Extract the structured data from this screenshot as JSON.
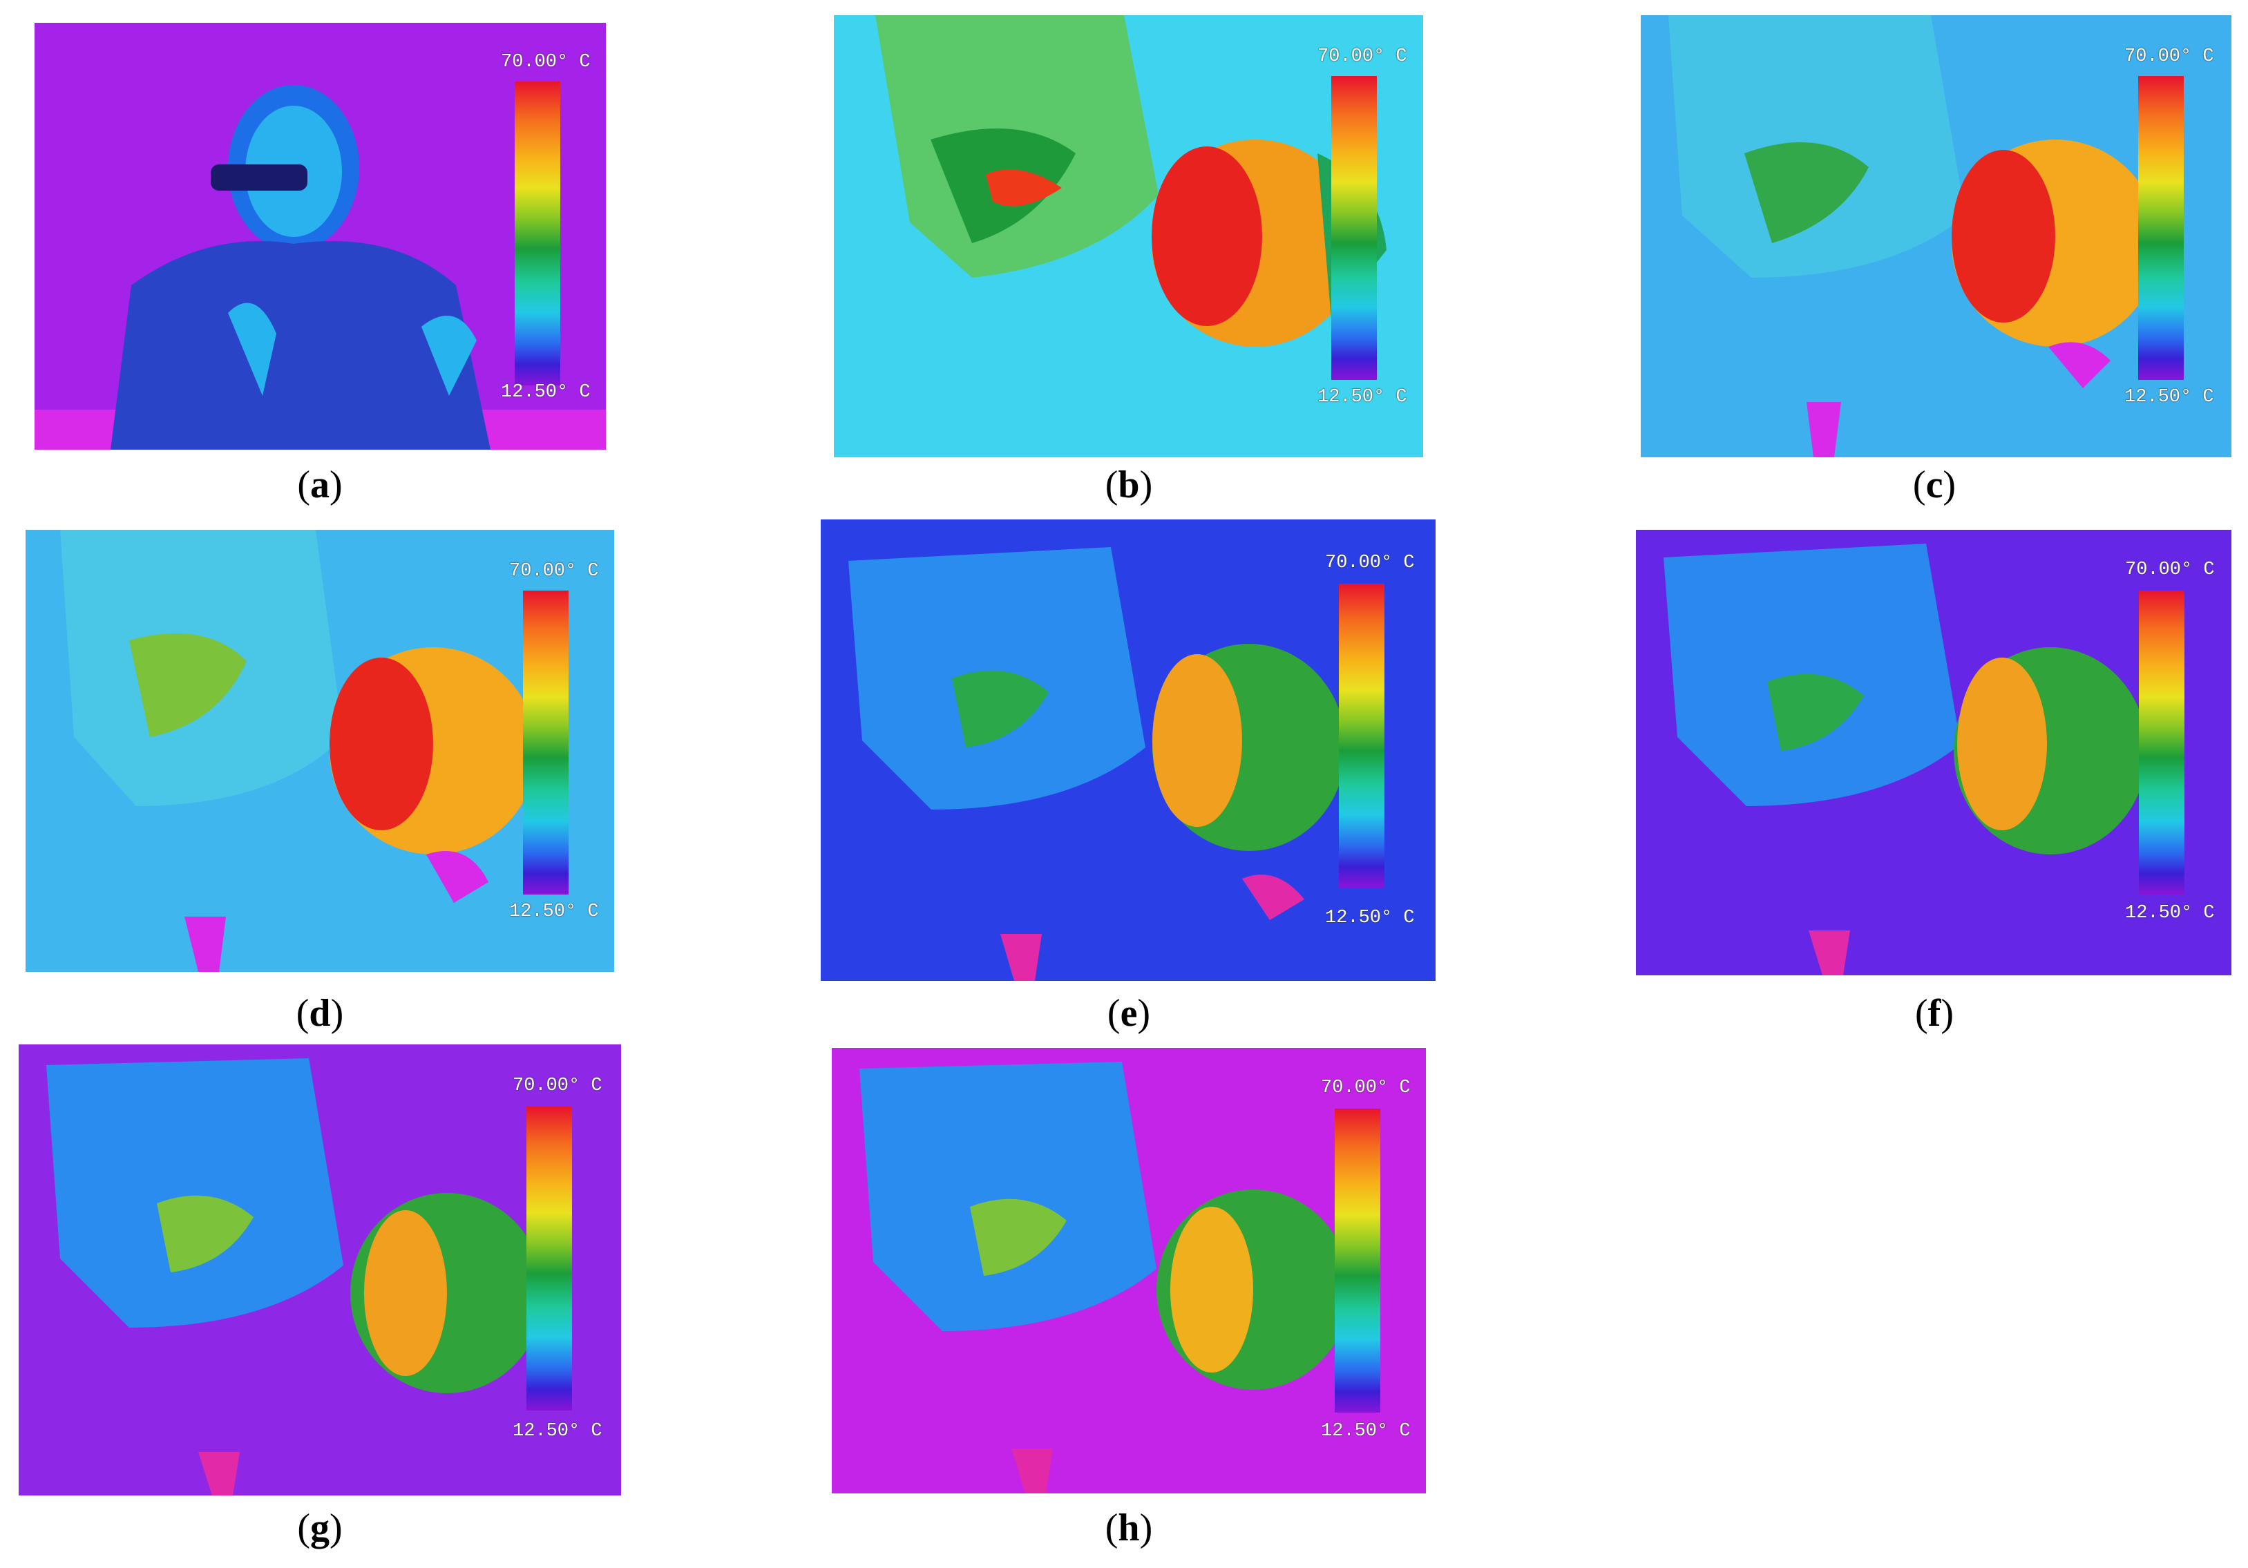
{
  "scale": {
    "max_label": "70.00° C",
    "min_label": "12.50° C"
  },
  "panels": [
    {
      "id": "a",
      "caption": "a",
      "bg": "#a522e8"
    },
    {
      "id": "b",
      "caption": "b",
      "bg": "#3ed3ee"
    },
    {
      "id": "c",
      "caption": "c",
      "bg": "#3fb0ee"
    },
    {
      "id": "d",
      "caption": "d",
      "bg": "#3fb6ee"
    },
    {
      "id": "e",
      "caption": "e",
      "bg": "#2a40e6"
    },
    {
      "id": "f",
      "caption": "f",
      "bg": "#6526e6"
    },
    {
      "id": "g",
      "caption": "g",
      "bg": "#8e28e6"
    },
    {
      "id": "h",
      "caption": "h",
      "bg": "#c424e8"
    }
  ]
}
